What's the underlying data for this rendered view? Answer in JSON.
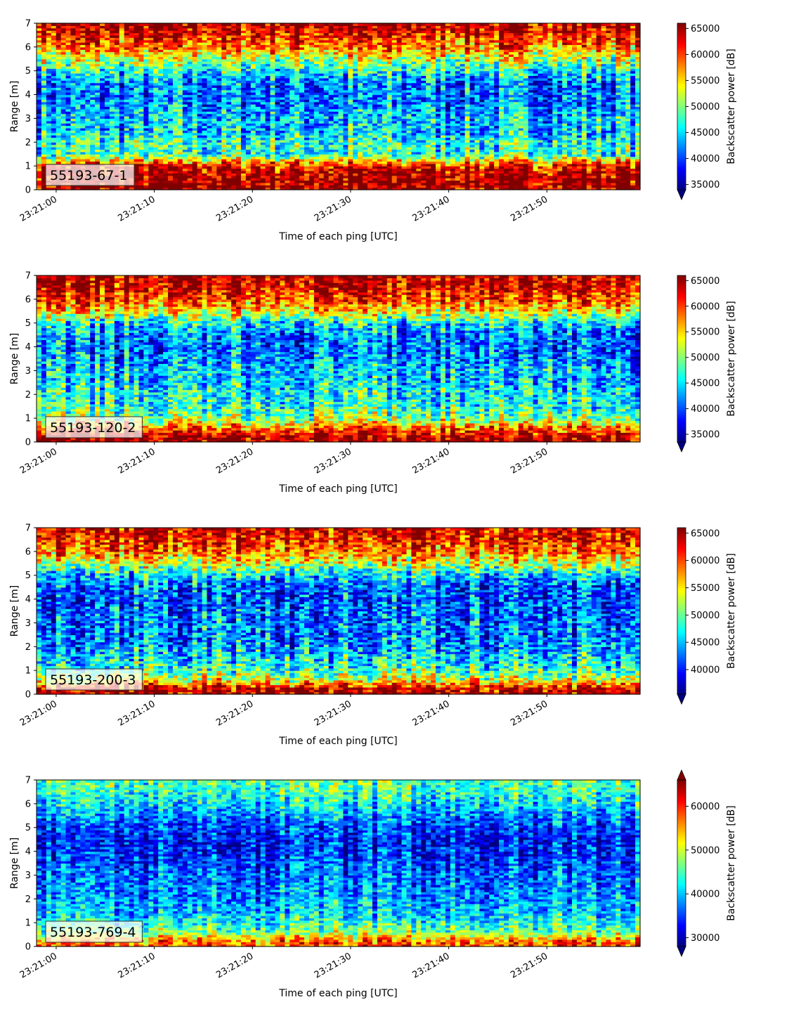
{
  "figure": {
    "colormap": "jet",
    "panels": [
      {
        "station_label": "55193-67-1",
        "colorbar": {
          "label": "Backscatter power [dB]",
          "ticks": [
            35000,
            40000,
            45000,
            50000,
            55000,
            60000,
            65000
          ],
          "range": [
            34000,
            66000
          ],
          "extend": "min"
        }
      },
      {
        "station_label": "55193-120-2",
        "colorbar": {
          "label": "Backscatter power [dB]",
          "ticks": [
            35000,
            40000,
            45000,
            50000,
            55000,
            60000,
            65000
          ],
          "range": [
            33500,
            66000
          ],
          "extend": "min"
        }
      },
      {
        "station_label": "55193-200-3",
        "colorbar": {
          "label": "Backscatter power [dB]",
          "ticks": [
            40000,
            45000,
            50000,
            55000,
            60000,
            65000
          ],
          "range": [
            35500,
            66000
          ],
          "extend": "min"
        }
      },
      {
        "station_label": "55193-769-4",
        "colorbar": {
          "label": "Backscatter power [dB]",
          "ticks": [
            30000,
            40000,
            50000,
            60000
          ],
          "range": [
            28000,
            66000
          ],
          "extend": "both"
        }
      }
    ]
  },
  "chart_data": [
    {
      "type": "heatmap",
      "title": "",
      "xlabel": "Time of each ping [UTC]",
      "ylabel": "Range [m]",
      "x_ticks": [
        "23:21:00",
        "23:21:10",
        "23:21:20",
        "23:21:30",
        "23:21:40",
        "23:21:50"
      ],
      "x_range": [
        "23:20:58",
        "23:21:59.5"
      ],
      "y_ticks": [
        0,
        1,
        2,
        3,
        4,
        5,
        6,
        7
      ],
      "ylim": [
        0,
        7
      ],
      "profile": {
        "range_m": [
          0.2,
          0.6,
          1.0,
          1.5,
          2.0,
          2.5,
          3.0,
          3.5,
          4.0,
          4.5,
          5.0,
          5.5,
          6.0,
          6.5,
          7.0
        ],
        "mean_power": [
          65000,
          65000,
          62000,
          47000,
          47500,
          44000,
          44500,
          42500,
          41500,
          42000,
          46500,
          52000,
          58000,
          62000,
          64500
        ]
      }
    },
    {
      "type": "heatmap",
      "title": "",
      "xlabel": "Time of each ping [UTC]",
      "ylabel": "Range [m]",
      "x_ticks": [
        "23:21:00",
        "23:21:10",
        "23:21:20",
        "23:21:30",
        "23:21:40",
        "23:21:50"
      ],
      "x_range": [
        "23:20:58",
        "23:21:59.5"
      ],
      "y_ticks": [
        0,
        1,
        2,
        3,
        4,
        5,
        6,
        7
      ],
      "ylim": [
        0,
        7
      ],
      "profile": {
        "range_m": [
          0.2,
          0.6,
          1.0,
          1.5,
          2.0,
          2.5,
          3.0,
          3.5,
          4.0,
          4.5,
          5.0,
          5.5,
          6.0,
          6.5,
          7.0
        ],
        "mean_power": [
          65000,
          58000,
          50000,
          47000,
          46000,
          44000,
          44000,
          42000,
          41000,
          41500,
          45000,
          54000,
          60000,
          63000,
          64500
        ]
      }
    },
    {
      "type": "heatmap",
      "title": "",
      "xlabel": "Time of each ping [UTC]",
      "ylabel": "Range [m]",
      "x_ticks": [
        "23:21:00",
        "23:21:10",
        "23:21:20",
        "23:21:30",
        "23:21:40",
        "23:21:50"
      ],
      "x_range": [
        "23:20:58",
        "23:21:59.5"
      ],
      "y_ticks": [
        0,
        1,
        2,
        3,
        4,
        5,
        6,
        7
      ],
      "ylim": [
        0,
        7
      ],
      "profile": {
        "range_m": [
          0.2,
          0.6,
          1.0,
          1.5,
          2.0,
          2.5,
          3.0,
          3.5,
          4.0,
          4.5,
          5.0,
          5.5,
          6.0,
          6.5,
          7.0
        ],
        "mean_power": [
          65000,
          54000,
          49000,
          46500,
          44500,
          43000,
          43000,
          42500,
          41500,
          42000,
          46000,
          53000,
          59000,
          62000,
          64000
        ]
      }
    },
    {
      "type": "heatmap",
      "title": "",
      "xlabel": "Time of each ping [UTC]",
      "ylabel": "Range [m]",
      "x_ticks": [
        "23:21:00",
        "23:21:10",
        "23:21:20",
        "23:21:30",
        "23:21:40",
        "23:21:50"
      ],
      "x_range": [
        "23:20:58",
        "23:21:59.5"
      ],
      "y_ticks": [
        0,
        1,
        2,
        3,
        4,
        5,
        6,
        7
      ],
      "ylim": [
        0,
        7
      ],
      "profile": {
        "range_m": [
          0.2,
          0.6,
          1.0,
          1.5,
          2.0,
          2.5,
          3.0,
          3.5,
          4.0,
          4.5,
          5.0,
          5.5,
          6.0,
          6.5,
          7.0
        ],
        "mean_power": [
          58000,
          47000,
          43000,
          40000,
          38500,
          37500,
          36500,
          35500,
          34000,
          33500,
          35000,
          38000,
          41500,
          44000,
          45500
        ]
      }
    }
  ]
}
